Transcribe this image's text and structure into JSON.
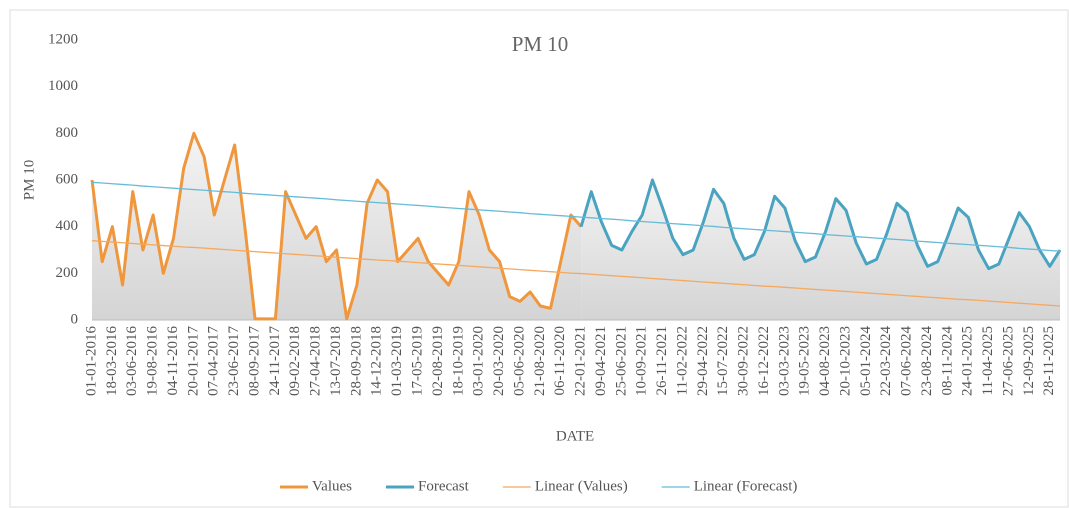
{
  "chart_data": {
    "type": "line",
    "title": "PM 10",
    "x_label": "DATE",
    "y_label": "PM 10",
    "categories": [
      "01-01-2016",
      null,
      "18-03-2016",
      null,
      "03-06-2016",
      null,
      "19-08-2016",
      null,
      "04-11-2016",
      null,
      "20-01-2017",
      null,
      "07-04-2017",
      null,
      "23-06-2017",
      null,
      "08-09-2017",
      null,
      "24-11-2017",
      null,
      "09-02-2018",
      null,
      "27-04-2018",
      null,
      "13-07-2018",
      null,
      "28-09-2018",
      null,
      "14-12-2018",
      null,
      "01-03-2019",
      null,
      "17-05-2019",
      null,
      "02-08-2019",
      null,
      "18-10-2019",
      null,
      "03-01-2020",
      null,
      "20-03-2020",
      null,
      "05-06-2020",
      null,
      "21-08-2020",
      null,
      "06-11-2020",
      null,
      "22-01-2021",
      null,
      "09-04-2021",
      null,
      "25-06-2021",
      null,
      "10-09-2021",
      null,
      "26-11-2021",
      null,
      "11-02-2022",
      null,
      "29-04-2022",
      null,
      "15-07-2022",
      null,
      "30-09-2022",
      null,
      "16-12-2022",
      null,
      "03-03-2023",
      null,
      "19-05-2023",
      null,
      "04-08-2023",
      null,
      "20-10-2023",
      null,
      "05-01-2024",
      null,
      "22-03-2024",
      null,
      "07-06-2024",
      null,
      "23-08-2024",
      null,
      "08-11-2024",
      null,
      "24-01-2025",
      null,
      "11-04-2025",
      null,
      "27-06-2025",
      null,
      "12-09-2025",
      null,
      "28-11-2025",
      null
    ],
    "series": [
      {
        "name": "Values",
        "color": "#f0963c",
        "width": 3,
        "area": true,
        "values": [
          600,
          250,
          400,
          150,
          550,
          300,
          450,
          200,
          350,
          650,
          800,
          700,
          450,
          600,
          750,
          400,
          5,
          5,
          5,
          550,
          450,
          350,
          400,
          250,
          300,
          5,
          150,
          500,
          600,
          550,
          250,
          300,
          350,
          250,
          200,
          150,
          250,
          550,
          450,
          300,
          250,
          100,
          80,
          120,
          60,
          50,
          250,
          450,
          400,
          null,
          null,
          null,
          null,
          null,
          null,
          null,
          null,
          null,
          null,
          null,
          null,
          null,
          null,
          null,
          null,
          null,
          null,
          null,
          null,
          null,
          null,
          null,
          null,
          null,
          null,
          null,
          null,
          null,
          null,
          null,
          null,
          null,
          null,
          null,
          null,
          null,
          null,
          null,
          null,
          null,
          null,
          null,
          null,
          null,
          null,
          null
        ]
      },
      {
        "name": "Forecast",
        "color": "#4aa3c0",
        "width": 3,
        "area": true,
        "values": [
          null,
          null,
          null,
          null,
          null,
          null,
          null,
          null,
          null,
          null,
          null,
          null,
          null,
          null,
          null,
          null,
          null,
          null,
          null,
          null,
          null,
          null,
          null,
          null,
          null,
          null,
          null,
          null,
          null,
          null,
          null,
          null,
          null,
          null,
          null,
          null,
          null,
          null,
          null,
          null,
          null,
          null,
          null,
          null,
          null,
          null,
          null,
          null,
          400,
          550,
          420,
          320,
          300,
          380,
          450,
          600,
          480,
          350,
          280,
          300,
          420,
          560,
          500,
          350,
          260,
          280,
          380,
          530,
          480,
          340,
          250,
          270,
          380,
          520,
          470,
          330,
          240,
          260,
          370,
          500,
          460,
          320,
          230,
          250,
          360,
          480,
          440,
          300,
          220,
          240,
          350,
          460,
          400,
          300,
          230,
          300
        ]
      },
      {
        "name": "Linear (Values)",
        "color": "#f5a860",
        "width": 1.3,
        "area": false,
        "values": [
          340,
          337,
          334,
          331,
          328,
          325,
          322,
          319,
          316,
          313,
          311,
          308,
          305,
          302,
          299,
          296,
          293,
          290,
          287,
          284,
          281,
          278,
          275,
          272,
          269,
          266,
          263,
          260,
          257,
          255,
          252,
          249,
          246,
          243,
          240,
          237,
          234,
          231,
          228,
          225,
          222,
          219,
          216,
          213,
          210,
          207,
          204,
          201,
          199,
          196,
          193,
          190,
          187,
          184,
          181,
          178,
          175,
          172,
          169,
          166,
          163,
          160,
          157,
          154,
          151,
          148,
          145,
          143,
          140,
          137,
          134,
          131,
          128,
          125,
          122,
          119,
          116,
          113,
          110,
          107,
          104,
          101,
          98,
          95,
          92,
          89,
          87,
          84,
          81,
          78,
          75,
          72,
          69,
          66,
          63,
          60
        ]
      },
      {
        "name": "Linear (Forecast)",
        "color": "#66bcd6",
        "width": 1.3,
        "area": false,
        "values": [
          590,
          587,
          584,
          581,
          578,
          574,
          571,
          568,
          565,
          562,
          559,
          556,
          553,
          550,
          547,
          543,
          540,
          537,
          534,
          531,
          528,
          525,
          522,
          519,
          515,
          512,
          509,
          506,
          503,
          500,
          497,
          494,
          491,
          488,
          484,
          481,
          478,
          475,
          472,
          469,
          466,
          463,
          460,
          456,
          453,
          450,
          447,
          444,
          441,
          438,
          435,
          432,
          429,
          425,
          422,
          419,
          416,
          413,
          410,
          407,
          404,
          401,
          397,
          394,
          391,
          388,
          385,
          382,
          379,
          376,
          373,
          370,
          366,
          363,
          360,
          357,
          354,
          351,
          348,
          345,
          342,
          338,
          335,
          332,
          329,
          326,
          323,
          320,
          317,
          314,
          311,
          307,
          304,
          301,
          298,
          295
        ]
      }
    ],
    "ylim": [
      0,
      1200
    ],
    "yticks": [
      0,
      200,
      400,
      600,
      800,
      1000,
      1200
    ],
    "grid": false,
    "legend": "bottom"
  }
}
